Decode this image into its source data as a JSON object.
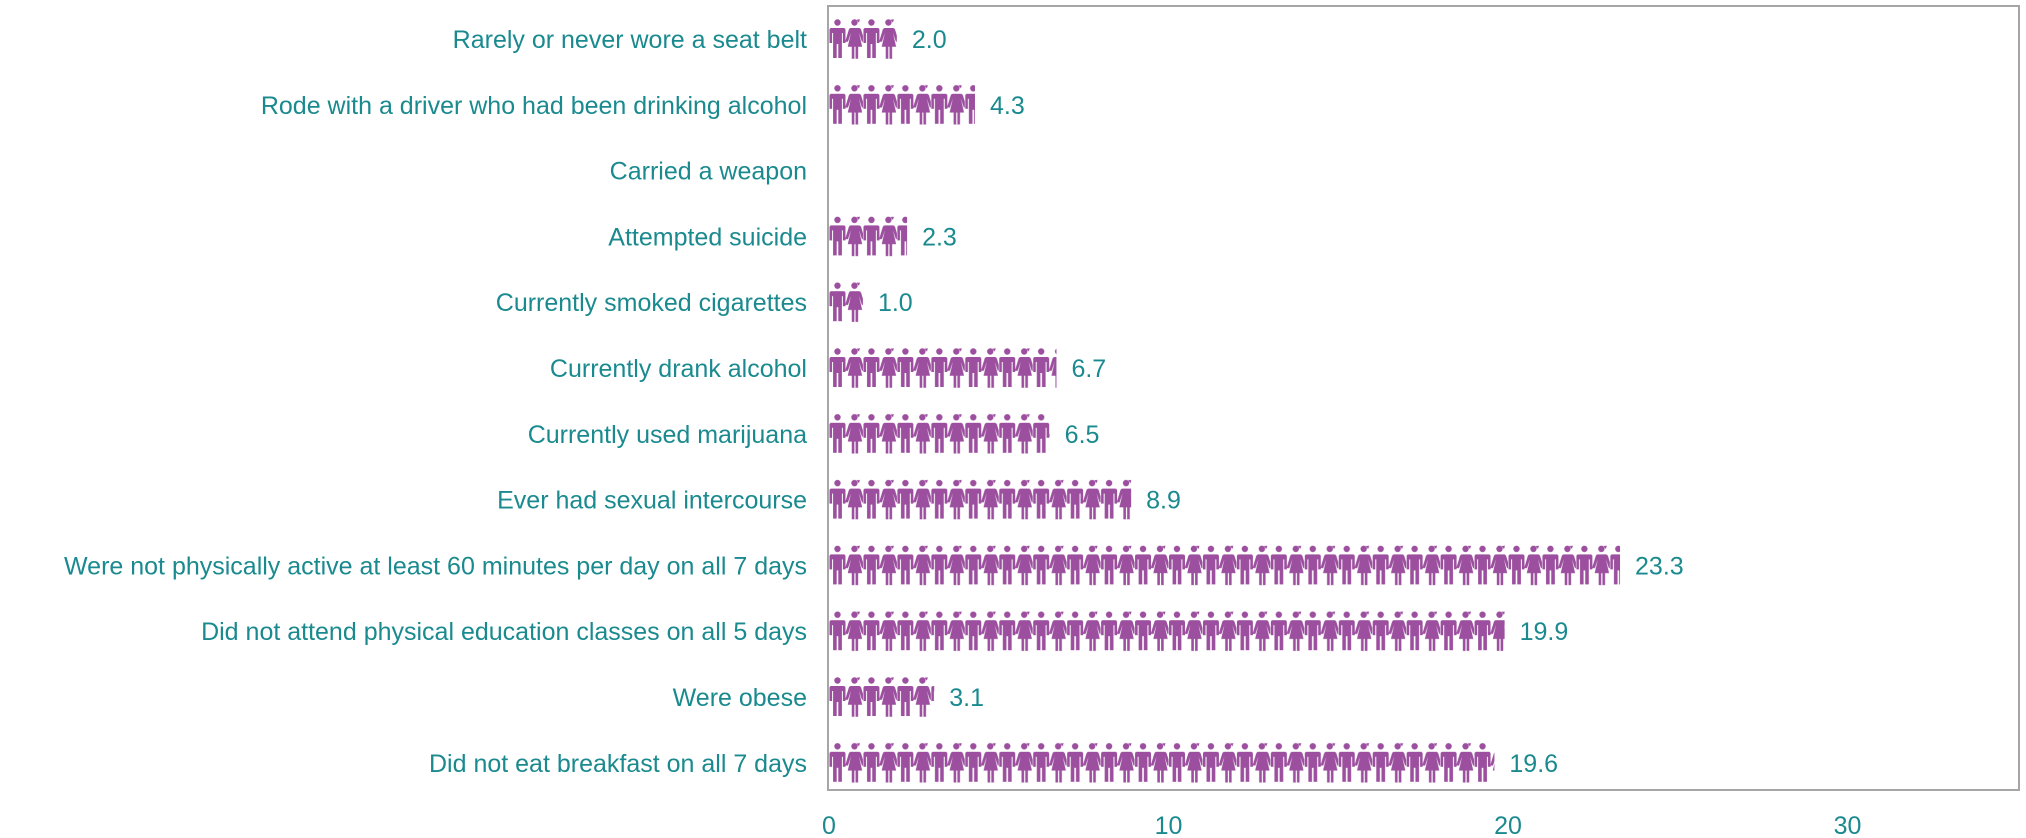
{
  "chart_data": {
    "type": "bar",
    "style": "pictograph",
    "categories": [
      "Rarely or never wore a seat belt",
      "Rode with a driver who had been drinking alcohol",
      "Carried a weapon",
      "Attempted suicide",
      "Currently smoked cigarettes",
      "Currently drank alcohol",
      "Currently used marijuana ",
      "Ever had sexual intercourse",
      "Were not physically active at least 60 minutes per day on all 7 days",
      "Did not attend physical education classes on all 5 days ",
      "Were obese",
      "Did not eat breakfast on all 7 days"
    ],
    "values": [
      2.0,
      4.3,
      null,
      2.3,
      1.0,
      6.7,
      6.5,
      8.9,
      23.3,
      19.9,
      3.1,
      19.6
    ],
    "value_labels": [
      "2.0",
      "4.3",
      "",
      "2.3",
      "1.0",
      "6.7",
      "6.5",
      "8.9",
      "23.3",
      "19.9",
      "3.1",
      "19.6"
    ],
    "x_ticks": [
      0,
      10,
      20,
      30
    ],
    "xlim": [
      0,
      35
    ],
    "title": "",
    "xlabel": "",
    "ylabel": "",
    "grid": false,
    "icon": "person-pair-icon",
    "colors": {
      "icon": "#9b4f9e",
      "text": "#1a8a8f",
      "frame": "#a6a6a6"
    }
  }
}
